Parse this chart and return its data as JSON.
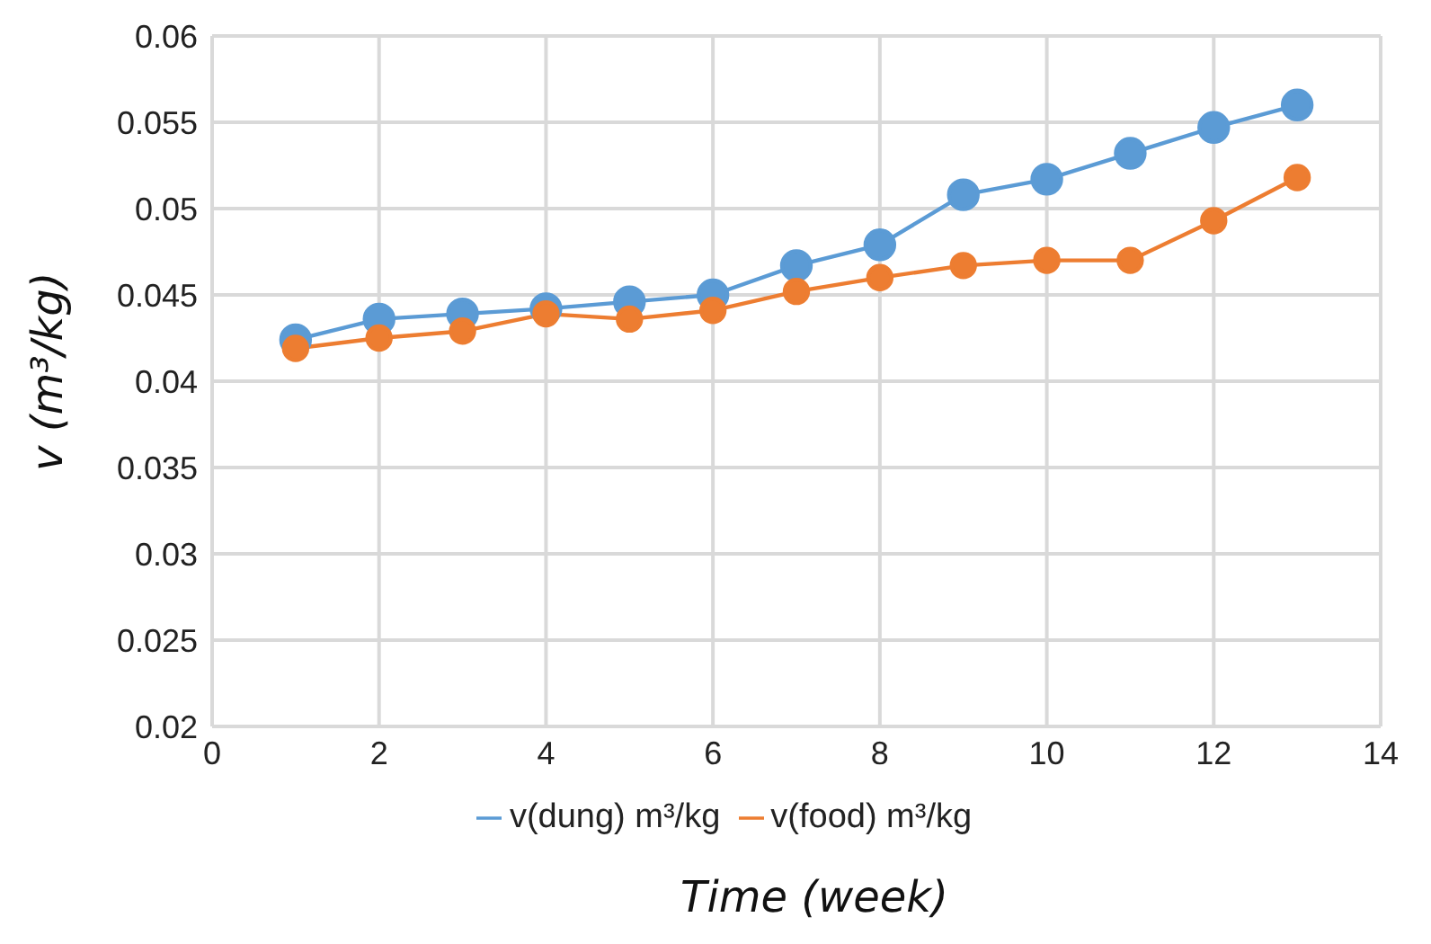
{
  "chart_data": {
    "type": "line",
    "xlabel": "Time (week)",
    "ylabel": "v (m³/kg)",
    "x": [
      1,
      2,
      3,
      4,
      5,
      6,
      7,
      8,
      9,
      10,
      11,
      12,
      13
    ],
    "series": [
      {
        "name": "v(dung) m³/kg",
        "color": "#5b9bd5",
        "values": [
          0.0424,
          0.0436,
          0.0439,
          0.0442,
          0.0446,
          0.045,
          0.0467,
          0.0479,
          0.0508,
          0.0517,
          0.0532,
          0.0547,
          0.056
        ]
      },
      {
        "name": "v(food) m³/kg",
        "color": "#ed7d31",
        "values": [
          0.0419,
          0.0425,
          0.0429,
          0.0439,
          0.0436,
          0.0441,
          0.0452,
          0.046,
          0.0467,
          0.047,
          0.047,
          0.0493,
          0.0518
        ]
      }
    ],
    "xlim": [
      0,
      14
    ],
    "xticks": [
      0,
      2,
      4,
      6,
      8,
      10,
      12,
      14
    ],
    "ylim": [
      0.02,
      0.06
    ],
    "yticks": [
      0.02,
      0.025,
      0.03,
      0.035,
      0.04,
      0.045,
      0.05,
      0.055,
      0.06
    ],
    "grid": true,
    "legend": "bottom",
    "marker": "circle",
    "line_style": "solid"
  }
}
